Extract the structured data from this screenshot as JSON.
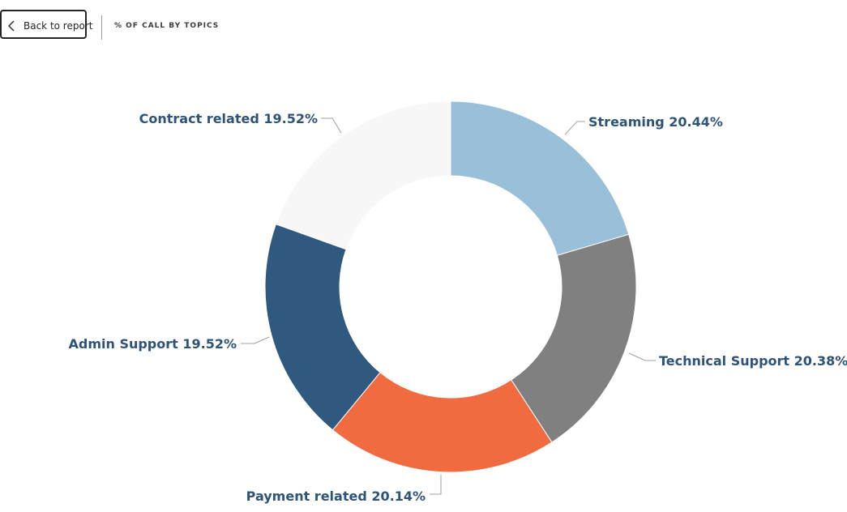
{
  "toolbar": {
    "back_label": "Back to report",
    "back_icon": "chevron-left-icon"
  },
  "header": {
    "title": "% OF CALL BY TOPICS"
  },
  "chart_data": {
    "type": "pie",
    "variant": "donut",
    "title": "% OF CALL BY TOPICS",
    "unit": "%",
    "slices": [
      {
        "name": "Streaming",
        "value": 20.44,
        "label": "Streaming 20.44%",
        "color": "#9ABFD9"
      },
      {
        "name": "Technical Support",
        "value": 20.38,
        "label": "Technical Support 20.38%",
        "color": "#808080"
      },
      {
        "name": "Payment related",
        "value": 20.14,
        "label": "Payment related 20.14%",
        "color": "#F06B3F"
      },
      {
        "name": "Admin Support",
        "value": 19.52,
        "label": "Admin Support 19.52%",
        "color": "#30597F"
      },
      {
        "name": "Contract related",
        "value": 19.52,
        "label": "Contract related 19.52%",
        "color": "#F7F7F7"
      }
    ],
    "label_color": "#2E5379",
    "leader_line_color": "#A0A0A0",
    "legend": "none"
  }
}
